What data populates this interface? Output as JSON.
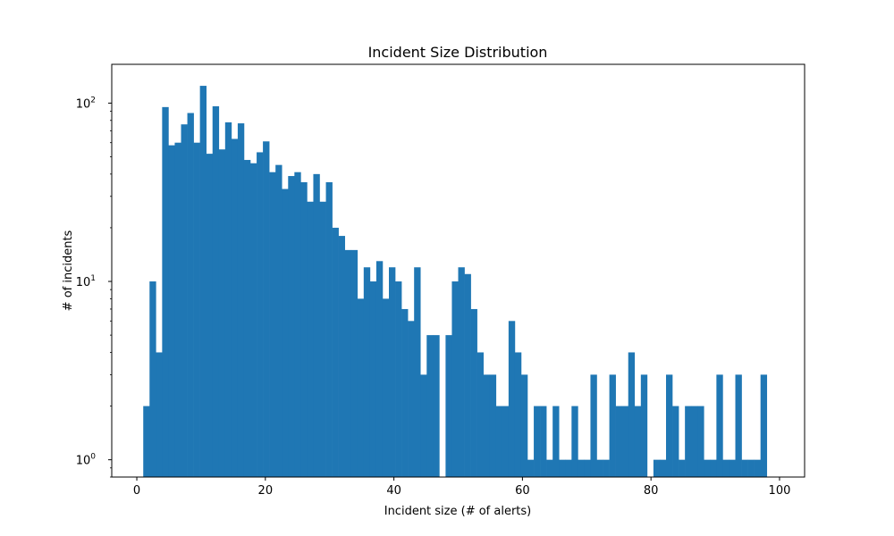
{
  "chart_data": {
    "type": "bar",
    "title": "Incident Size Distribution",
    "xlabel": "Incident size (# of alerts)",
    "ylabel": "# of incidents",
    "yscale": "log",
    "xlim": [
      -3.9,
      103.9
    ],
    "ylim": [
      0.8,
      165
    ],
    "grid": false,
    "bar_color": "#1f77b4",
    "bin_start": 1,
    "bin_width": 0.98,
    "values": [
      2,
      10,
      4,
      95,
      58,
      60,
      76,
      88,
      60,
      125,
      52,
      96,
      55,
      78,
      63,
      77,
      48,
      46,
      53,
      61,
      41,
      45,
      33,
      39,
      41,
      36,
      28,
      40,
      28,
      36,
      20,
      18,
      15,
      15,
      8,
      12,
      10,
      13,
      8,
      12,
      10,
      7,
      6,
      12,
      3,
      5,
      5,
      0,
      5,
      10,
      12,
      11,
      7,
      4,
      3,
      3,
      2,
      2,
      6,
      4,
      3,
      1,
      2,
      2,
      1,
      2,
      1,
      1,
      2,
      1,
      1,
      3,
      1,
      1,
      3,
      2,
      2,
      4,
      2,
      3,
      0,
      1,
      1,
      3,
      2,
      1,
      2,
      2,
      2,
      1,
      1,
      3,
      1,
      1,
      3,
      1,
      1,
      1,
      3
    ],
    "x_ticks": [
      {
        "value": 0,
        "label": "0"
      },
      {
        "value": 20,
        "label": "20"
      },
      {
        "value": 40,
        "label": "40"
      },
      {
        "value": 60,
        "label": "60"
      },
      {
        "value": 80,
        "label": "80"
      },
      {
        "value": 100,
        "label": "100"
      }
    ],
    "y_ticks": [
      {
        "value": 1,
        "base": "10",
        "exp": "0"
      },
      {
        "value": 10,
        "base": "10",
        "exp": "1"
      },
      {
        "value": 100,
        "base": "10",
        "exp": "2"
      }
    ]
  }
}
